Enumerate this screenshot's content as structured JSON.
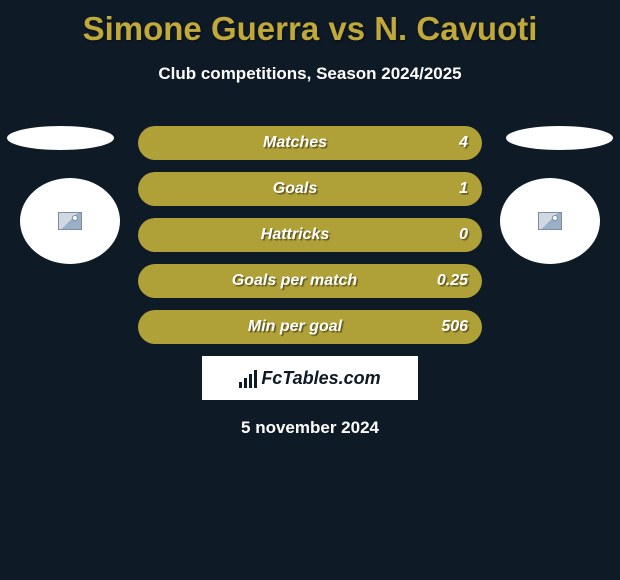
{
  "title": "Simone Guerra vs N. Cavuoti",
  "subtitle": "Club competitions, Season 2024/2025",
  "colors": {
    "background": "#0e1a25",
    "accent": "#c0a93a",
    "stat_bar": "#afa038",
    "text_light": "#ffffff",
    "logo_bg": "#ffffff",
    "logo_fg": "#0e1a25"
  },
  "stats": [
    {
      "label": "Matches",
      "value": "4"
    },
    {
      "label": "Goals",
      "value": "1"
    },
    {
      "label": "Hattricks",
      "value": "0"
    },
    {
      "label": "Goals per match",
      "value": "0.25"
    },
    {
      "label": "Min per goal",
      "value": "506"
    }
  ],
  "footer": {
    "logo_text": "FcTables.com",
    "date": "5 november 2024"
  }
}
